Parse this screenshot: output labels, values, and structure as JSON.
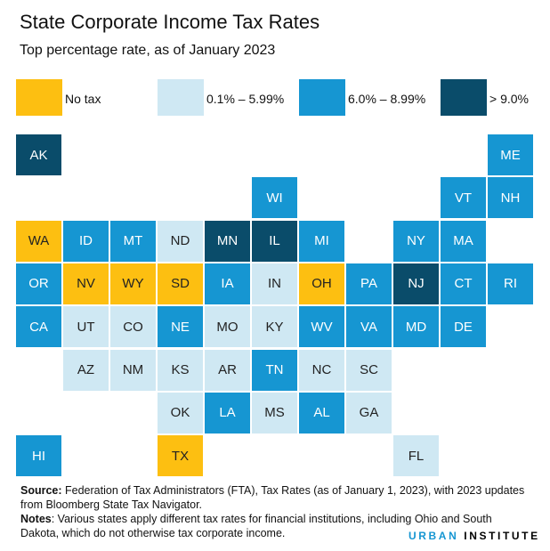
{
  "chart_data": {
    "type": "tile-map",
    "title": "State Corporate Income Tax Rates",
    "subtitle": "Top percentage rate, as of January 2023",
    "legend": [
      {
        "key": "none",
        "label": "No tax",
        "color": "#fdbf11"
      },
      {
        "key": "low",
        "label": "0.1% – 5.99%",
        "color": "#cfe8f3"
      },
      {
        "key": "mid",
        "label": "6.0% – 8.99%",
        "color": "#1696d2"
      },
      {
        "key": "high",
        "label": "> 9.0%",
        "color": "#0a4c6a"
      }
    ],
    "states": [
      {
        "s": "AK",
        "row": 0,
        "col": 0,
        "cat": "high"
      },
      {
        "s": "ME",
        "row": 0,
        "col": 10,
        "cat": "mid"
      },
      {
        "s": "WI",
        "row": 1,
        "col": 5,
        "cat": "mid"
      },
      {
        "s": "VT",
        "row": 1,
        "col": 9,
        "cat": "mid"
      },
      {
        "s": "NH",
        "row": 1,
        "col": 10,
        "cat": "mid"
      },
      {
        "s": "WA",
        "row": 2,
        "col": 0,
        "cat": "none"
      },
      {
        "s": "ID",
        "row": 2,
        "col": 1,
        "cat": "mid"
      },
      {
        "s": "MT",
        "row": 2,
        "col": 2,
        "cat": "mid"
      },
      {
        "s": "ND",
        "row": 2,
        "col": 3,
        "cat": "low"
      },
      {
        "s": "MN",
        "row": 2,
        "col": 4,
        "cat": "high"
      },
      {
        "s": "IL",
        "row": 2,
        "col": 5,
        "cat": "high"
      },
      {
        "s": "MI",
        "row": 2,
        "col": 6,
        "cat": "mid"
      },
      {
        "s": "NY",
        "row": 2,
        "col": 8,
        "cat": "mid"
      },
      {
        "s": "MA",
        "row": 2,
        "col": 9,
        "cat": "mid"
      },
      {
        "s": "OR",
        "row": 3,
        "col": 0,
        "cat": "mid"
      },
      {
        "s": "NV",
        "row": 3,
        "col": 1,
        "cat": "none"
      },
      {
        "s": "WY",
        "row": 3,
        "col": 2,
        "cat": "none"
      },
      {
        "s": "SD",
        "row": 3,
        "col": 3,
        "cat": "none"
      },
      {
        "s": "IA",
        "row": 3,
        "col": 4,
        "cat": "mid"
      },
      {
        "s": "IN",
        "row": 3,
        "col": 5,
        "cat": "low"
      },
      {
        "s": "OH",
        "row": 3,
        "col": 6,
        "cat": "none"
      },
      {
        "s": "PA",
        "row": 3,
        "col": 7,
        "cat": "mid"
      },
      {
        "s": "NJ",
        "row": 3,
        "col": 8,
        "cat": "high"
      },
      {
        "s": "CT",
        "row": 3,
        "col": 9,
        "cat": "mid"
      },
      {
        "s": "RI",
        "row": 3,
        "col": 10,
        "cat": "mid"
      },
      {
        "s": "CA",
        "row": 4,
        "col": 0,
        "cat": "mid"
      },
      {
        "s": "UT",
        "row": 4,
        "col": 1,
        "cat": "low"
      },
      {
        "s": "CO",
        "row": 4,
        "col": 2,
        "cat": "low"
      },
      {
        "s": "NE",
        "row": 4,
        "col": 3,
        "cat": "mid"
      },
      {
        "s": "MO",
        "row": 4,
        "col": 4,
        "cat": "low"
      },
      {
        "s": "KY",
        "row": 4,
        "col": 5,
        "cat": "low"
      },
      {
        "s": "WV",
        "row": 4,
        "col": 6,
        "cat": "mid"
      },
      {
        "s": "VA",
        "row": 4,
        "col": 7,
        "cat": "mid"
      },
      {
        "s": "MD",
        "row": 4,
        "col": 8,
        "cat": "mid"
      },
      {
        "s": "DE",
        "row": 4,
        "col": 9,
        "cat": "mid"
      },
      {
        "s": "AZ",
        "row": 5,
        "col": 1,
        "cat": "low"
      },
      {
        "s": "NM",
        "row": 5,
        "col": 2,
        "cat": "low"
      },
      {
        "s": "KS",
        "row": 5,
        "col": 3,
        "cat": "low"
      },
      {
        "s": "AR",
        "row": 5,
        "col": 4,
        "cat": "low"
      },
      {
        "s": "TN",
        "row": 5,
        "col": 5,
        "cat": "mid"
      },
      {
        "s": "NC",
        "row": 5,
        "col": 6,
        "cat": "low"
      },
      {
        "s": "SC",
        "row": 5,
        "col": 7,
        "cat": "low"
      },
      {
        "s": "OK",
        "row": 6,
        "col": 3,
        "cat": "low"
      },
      {
        "s": "LA",
        "row": 6,
        "col": 4,
        "cat": "mid"
      },
      {
        "s": "MS",
        "row": 6,
        "col": 5,
        "cat": "low"
      },
      {
        "s": "AL",
        "row": 6,
        "col": 6,
        "cat": "mid"
      },
      {
        "s": "GA",
        "row": 6,
        "col": 7,
        "cat": "low"
      },
      {
        "s": "HI",
        "row": 7,
        "col": 0,
        "cat": "mid"
      },
      {
        "s": "TX",
        "row": 7,
        "col": 3,
        "cat": "none"
      },
      {
        "s": "FL",
        "row": 7,
        "col": 8,
        "cat": "low"
      }
    ]
  },
  "footer": {
    "source_label": "Source:",
    "source_text": " Federation of Tax Administrators (FTA), Tax Rates (as of January 1, 2023), with 2023 updates from Bloomberg State Tax Navigator.",
    "notes_label": "Notes",
    "notes_text": ": Various states apply different tax rates for financial institutions, including Ohio and South Dakota, which do not otherwise tax corporate income."
  },
  "logo": {
    "part1": "URBAN",
    "part2": "INSTITUTE",
    "color1": "#1696d2",
    "color2": "#000000"
  }
}
